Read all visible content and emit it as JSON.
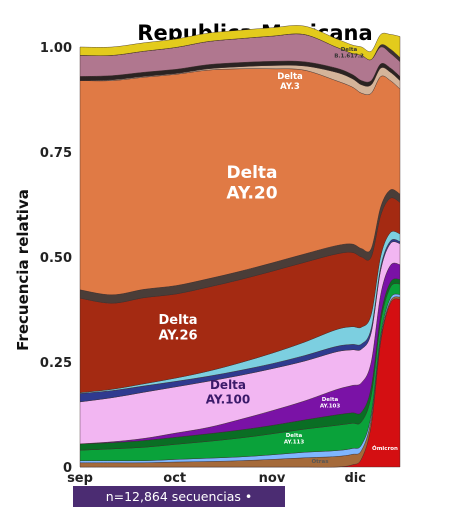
{
  "footer": {
    "text": "n=12,864 secuencias •"
  },
  "chart_data": {
    "type": "area",
    "title": "Republica Mexicana",
    "xlabel": "",
    "ylabel": "Frecuencia relativa",
    "ylim": [
      0,
      1
    ],
    "yticks": [
      "0",
      "0.25",
      "0.50",
      "0.75",
      "1.00"
    ],
    "ytick_values": [
      0,
      0.25,
      0.5,
      0.75,
      1.0
    ],
    "xticks": [
      "sep",
      "oct",
      "nov",
      "dic"
    ],
    "xtick_positions": [
      0.0,
      0.296,
      0.6,
      0.86
    ],
    "x": [
      0.0,
      0.1,
      0.2,
      0.3,
      0.4,
      0.5,
      0.6,
      0.7,
      0.8,
      0.85,
      0.88,
      0.91,
      0.94,
      0.97,
      1.0
    ],
    "grid": false,
    "legend": "none",
    "series": [
      {
        "name": "Ómicron",
        "color": "#d40f12",
        "values": [
          0.0,
          0.0,
          0.0,
          0.0,
          0.0,
          0.0,
          0.0,
          0.0,
          0.0,
          0.005,
          0.02,
          0.1,
          0.3,
          0.39,
          0.4
        ]
      },
      {
        "name": "Otras",
        "color": "#a56a3a",
        "values": [
          0.01,
          0.01,
          0.01,
          0.012,
          0.013,
          0.015,
          0.018,
          0.022,
          0.025,
          0.025,
          0.02,
          0.015,
          0.008,
          0.005,
          0.005
        ]
      },
      {
        "color": "#7fb6ff",
        "values": [
          0.005,
          0.005,
          0.005,
          0.006,
          0.008,
          0.009,
          0.011,
          0.013,
          0.014,
          0.014,
          0.013,
          0.01,
          0.008,
          0.007,
          0.006
        ]
      },
      {
        "name": "Delta AY.113",
        "color": "#0aa23a",
        "values": [
          0.025,
          0.028,
          0.032,
          0.036,
          0.04,
          0.045,
          0.05,
          0.055,
          0.06,
          0.06,
          0.055,
          0.045,
          0.032,
          0.026,
          0.025
        ]
      },
      {
        "color": "#0a6e24",
        "values": [
          0.015,
          0.015,
          0.016,
          0.017,
          0.018,
          0.019,
          0.02,
          0.022,
          0.025,
          0.025,
          0.023,
          0.02,
          0.014,
          0.012,
          0.011
        ]
      },
      {
        "name": "Delta AY.103",
        "color": "#7a12a6",
        "values": [
          0.0,
          0.002,
          0.005,
          0.01,
          0.015,
          0.025,
          0.035,
          0.045,
          0.06,
          0.065,
          0.07,
          0.06,
          0.05,
          0.04,
          0.035
        ]
      },
      {
        "name": "Delta AY.100",
        "color": "#f2b6f2",
        "values": [
          0.1,
          0.105,
          0.11,
          0.11,
          0.11,
          0.105,
          0.1,
          0.095,
          0.09,
          0.085,
          0.08,
          0.07,
          0.058,
          0.052,
          0.05
        ]
      },
      {
        "color": "#2f3a8f",
        "values": [
          0.02,
          0.017,
          0.015,
          0.013,
          0.012,
          0.012,
          0.012,
          0.013,
          0.013,
          0.013,
          0.012,
          0.01,
          0.008,
          0.006,
          0.005
        ]
      },
      {
        "color": "#7ccfe0",
        "values": [
          0.002,
          0.003,
          0.005,
          0.008,
          0.012,
          0.018,
          0.025,
          0.032,
          0.04,
          0.042,
          0.04,
          0.033,
          0.025,
          0.02,
          0.018
        ]
      },
      {
        "name": "Delta AY.26",
        "color": "#a42a12",
        "values": [
          0.225,
          0.205,
          0.205,
          0.2,
          0.2,
          0.198,
          0.195,
          0.19,
          0.18,
          0.177,
          0.167,
          0.137,
          0.097,
          0.082,
          0.075
        ]
      },
      {
        "color": "#4a3d38",
        "values": [
          0.02,
          0.02,
          0.02,
          0.02,
          0.02,
          0.02,
          0.02,
          0.02,
          0.02,
          0.02,
          0.02,
          0.02,
          0.02,
          0.02,
          0.02
        ]
      },
      {
        "name": "Delta AY.20",
        "color": "#e07a45",
        "values": [
          0.498,
          0.51,
          0.505,
          0.503,
          0.497,
          0.482,
          0.462,
          0.438,
          0.393,
          0.374,
          0.37,
          0.37,
          0.31,
          0.26,
          0.25
        ]
      },
      {
        "color": "#d4b49a",
        "values": [
          0.0,
          0.002,
          0.002,
          0.002,
          0.003,
          0.005,
          0.008,
          0.01,
          0.02,
          0.02,
          0.02,
          0.02,
          0.02,
          0.02,
          0.02
        ]
      },
      {
        "color": "#2b2322",
        "values": [
          0.01,
          0.01,
          0.01,
          0.01,
          0.01,
          0.01,
          0.01,
          0.01,
          0.01,
          0.01,
          0.01,
          0.01,
          0.01,
          0.01,
          0.01
        ]
      },
      {
        "name": "Delta AY.3",
        "color": "#b0778f",
        "values": [
          0.05,
          0.048,
          0.05,
          0.052,
          0.055,
          0.057,
          0.06,
          0.065,
          0.05,
          0.05,
          0.06,
          0.05,
          0.04,
          0.035,
          0.035
        ]
      },
      {
        "color": "#3a3030",
        "values": [
          0.0,
          0.0,
          0.0,
          0.0,
          0.0,
          0.0,
          0.0,
          0.0,
          0.0,
          0.0,
          0.0,
          0.0,
          0.005,
          0.01,
          0.01
        ]
      },
      {
        "name": "Delta B.1.617.2",
        "color": "#e3cb1c",
        "values": [
          0.02,
          0.02,
          0.02,
          0.02,
          0.02,
          0.02,
          0.02,
          0.02,
          0.02,
          0.02,
          0.02,
          0.02,
          0.025,
          0.035,
          0.05
        ]
      }
    ],
    "annotations": [
      {
        "key": "ay20",
        "lines": [
          "Delta",
          "AY.20"
        ],
        "color": "#ffffff",
        "size": 17
      },
      {
        "key": "ay26",
        "lines": [
          "Delta",
          "AY.26"
        ],
        "color": "#ffffff",
        "size": 13
      },
      {
        "key": "ay100",
        "lines": [
          "Delta",
          "AY.100"
        ],
        "color": "#3b1a6a",
        "size": 12
      },
      {
        "key": "ay3",
        "lines": [
          "Delta",
          "AY.3"
        ],
        "color": "#ffffff",
        "size": 8.5
      },
      {
        "key": "b1617",
        "lines": [
          "Delta",
          "B.1.617.2"
        ],
        "color": "#333333",
        "size": 5.5
      },
      {
        "key": "ay103",
        "lines": [
          "Delta",
          "AY.103"
        ],
        "color": "#ffffff",
        "size": 5.5
      },
      {
        "key": "ay113",
        "lines": [
          "Delta",
          "AY.113"
        ],
        "color": "#ffffff",
        "size": 5.5
      },
      {
        "key": "otras",
        "lines": [
          "Otras"
        ],
        "color": "#555555",
        "size": 5.5
      },
      {
        "key": "omicron",
        "lines": [
          "Ómicron"
        ],
        "color": "#ffffff",
        "size": 5.5
      }
    ]
  }
}
